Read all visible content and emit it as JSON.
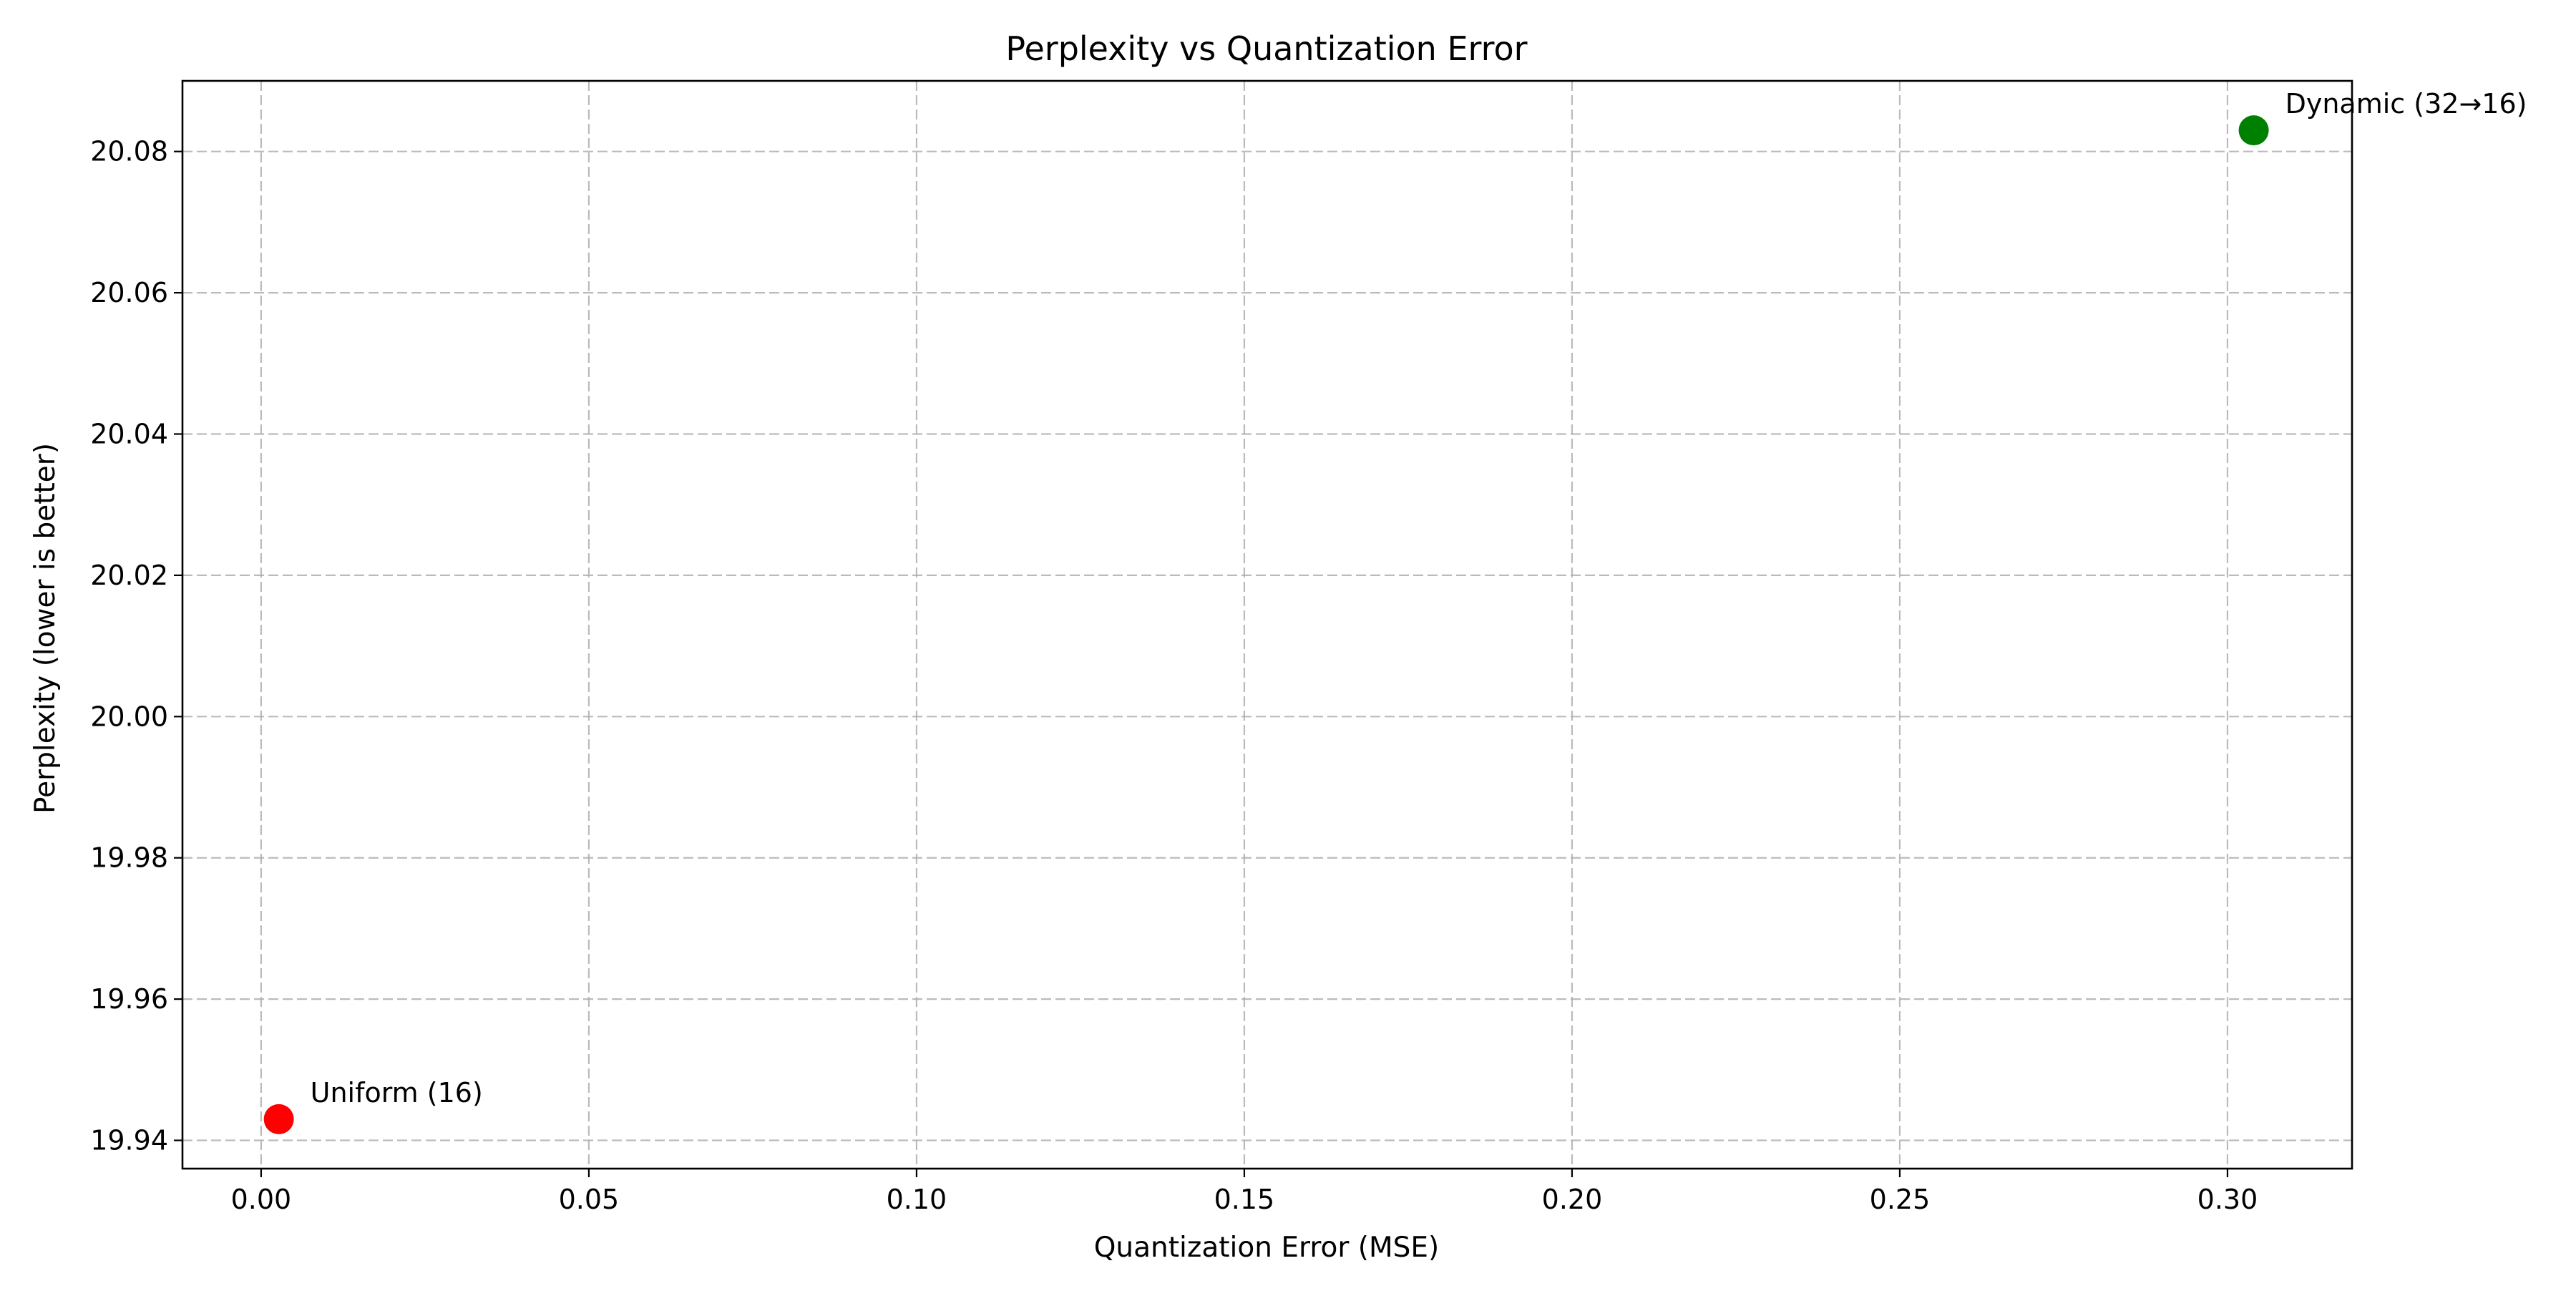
{
  "chart_data": {
    "type": "scatter",
    "title": "Perplexity vs Quantization Error",
    "xlabel": "Quantization Error (MSE)",
    "ylabel": "Perplexity (lower is better)",
    "xlim": [
      -0.012,
      0.319
    ],
    "ylim": [
      19.936,
      20.09
    ],
    "xticks": [
      0.0,
      0.05,
      0.1,
      0.15,
      0.2,
      0.25,
      0.3
    ],
    "xtick_labels": [
      "0.00",
      "0.05",
      "0.10",
      "0.15",
      "0.20",
      "0.25",
      "0.30"
    ],
    "yticks": [
      19.94,
      19.96,
      19.98,
      20.0,
      20.02,
      20.04,
      20.06,
      20.08
    ],
    "ytick_labels": [
      "19.94",
      "19.96",
      "19.98",
      "20.00",
      "20.02",
      "20.04",
      "20.06",
      "20.08"
    ],
    "grid": true,
    "points": [
      {
        "label": "Uniform (16)",
        "x": 0.0027,
        "y": 19.943,
        "color": "#ff0000"
      },
      {
        "label": "Dynamic (32→16)",
        "x": 0.304,
        "y": 20.083,
        "color": "#008000"
      }
    ]
  }
}
